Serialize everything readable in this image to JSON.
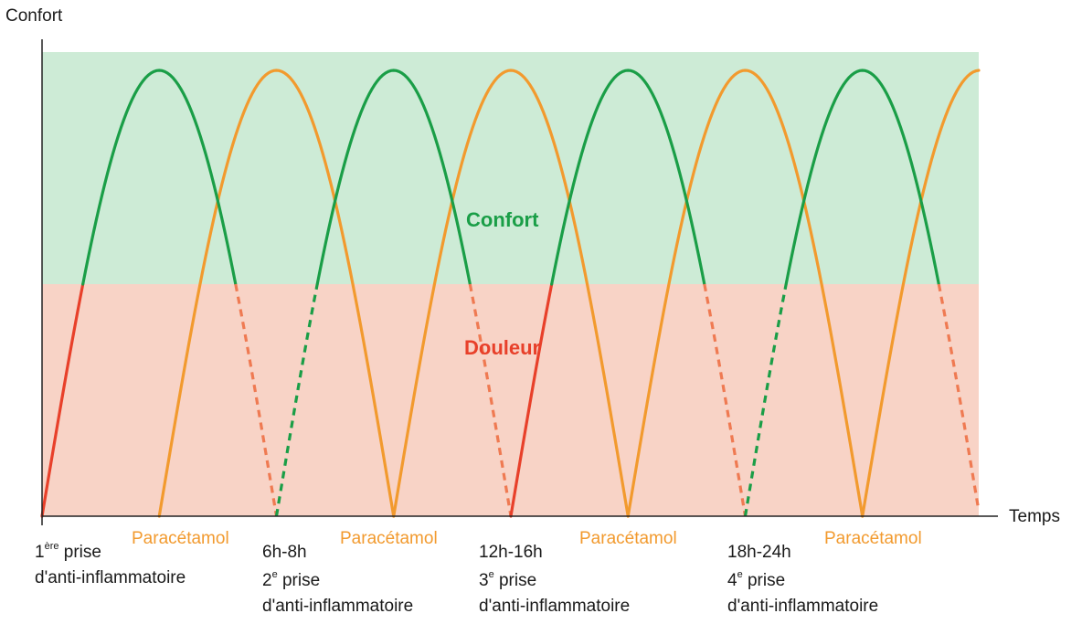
{
  "chart_data": {
    "type": "line",
    "title": "",
    "ylabel": "Confort",
    "xlabel": "Temps",
    "zones": [
      {
        "name": "Confort",
        "color": "#cdebd6"
      },
      {
        "name": "Douleur",
        "color": "#f8d3c6"
      }
    ],
    "colors": {
      "anti_inflammatoire": "#1a9e47",
      "paracetamol": "#f29a2e",
      "douleur_line": "#e8402a",
      "douleur_dashed": "#ef7a52",
      "confort_text": "#1a9e47",
      "douleur_text": "#e8402a"
    },
    "series": [
      {
        "name": "anti-inflammatoire",
        "doses": [
          0,
          1,
          2,
          3,
          4
        ]
      },
      {
        "name": "Paracétamol",
        "doses": [
          0.5,
          1.5,
          2.5,
          3.5
        ]
      }
    ],
    "x_labels": [
      {
        "id": "dose1",
        "lines": [
          "1",
          "prise",
          "d'anti-inflammatoire"
        ],
        "sup": "ère"
      },
      {
        "id": "para1",
        "text": "Paracétamol"
      },
      {
        "id": "dose2",
        "lines": [
          "6h-8h",
          "2",
          "prise",
          "d'anti-inflammatoire"
        ],
        "sup": "e"
      },
      {
        "id": "para2",
        "text": "Paracétamol"
      },
      {
        "id": "dose3",
        "lines": [
          "12h-16h",
          "3",
          "prise",
          "d'anti-inflammatoire"
        ],
        "sup": "e"
      },
      {
        "id": "para3",
        "text": "Paracétamol"
      },
      {
        "id": "dose4",
        "lines": [
          "18h-24h",
          "4",
          "prise",
          "d'anti-inflammatoire"
        ],
        "sup": "e"
      },
      {
        "id": "para4",
        "text": "Paracétamol"
      }
    ]
  }
}
